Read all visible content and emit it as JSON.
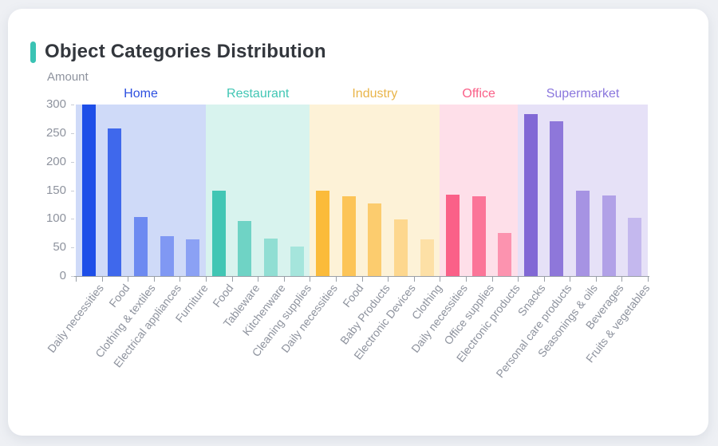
{
  "card": {
    "title": "Object Categories Distribution",
    "accent_color": "#3ac3b4"
  },
  "chart_data": {
    "type": "bar",
    "title": "Object Categories Distribution",
    "xlabel": "",
    "ylabel": "Amount",
    "ylim": [
      0,
      300
    ],
    "yticks": [
      0,
      50,
      100,
      150,
      200,
      250,
      300
    ],
    "grid": false,
    "legend_position": "group headers above plot, colored band per group",
    "axis_color": "#9aa0a8",
    "tick_label_color": "#8e939e",
    "groups": [
      {
        "name": "Home",
        "label_color": "#2d50e0",
        "band_color": "#cfdaf8",
        "categories": [
          "Daily necessities",
          "Food",
          "Clothing & textiles",
          "Electrical appliances",
          "Furniture"
        ],
        "values": [
          300,
          258,
          103,
          70,
          64
        ],
        "bar_colors": [
          "#1d4ee8",
          "#3f68ec",
          "#6d8af1",
          "#8098f3",
          "#8ba1f4"
        ]
      },
      {
        "name": "Restaurant",
        "label_color": "#41c6b4",
        "band_color": "#d8f3ee",
        "categories": [
          "Food",
          "Tableware",
          "Kitchenware",
          "Cleaning supplies"
        ],
        "values": [
          149,
          97,
          65,
          52
        ],
        "bar_colors": [
          "#41c6b4",
          "#6fd3c5",
          "#90ded3",
          "#a5e5dc"
        ]
      },
      {
        "name": "Industry",
        "label_color": "#e9b54a",
        "band_color": "#fdf2d7",
        "categories": [
          "Daily necessities",
          "Food",
          "Baby Products",
          "Electronic Devices",
          "Clothing"
        ],
        "values": [
          150,
          139,
          127,
          99,
          64
        ],
        "bar_colors": [
          "#fbbb3a",
          "#fcc457",
          "#fccc6e",
          "#fdd78e",
          "#fde0a6"
        ]
      },
      {
        "name": "Office",
        "label_color": "#fa6088",
        "band_color": "#fedfe9",
        "categories": [
          "Daily necessities",
          "Office supplies",
          "Electronic products"
        ],
        "values": [
          143,
          139,
          75
        ],
        "bar_colors": [
          "#fa6088",
          "#fb7598",
          "#fc93af"
        ]
      },
      {
        "name": "Supermarket",
        "label_color": "#8a76dd",
        "band_color": "#e6e1f7",
        "categories": [
          "Snacks",
          "Personal care products",
          "Seasonings & oils",
          "Beverages",
          "Fruits & vegetables"
        ],
        "values": [
          284,
          271,
          149,
          141,
          102
        ],
        "bar_colors": [
          "#8168d5",
          "#8e77da",
          "#a693e3",
          "#b1a1e7",
          "#c4b8ee"
        ]
      }
    ]
  }
}
